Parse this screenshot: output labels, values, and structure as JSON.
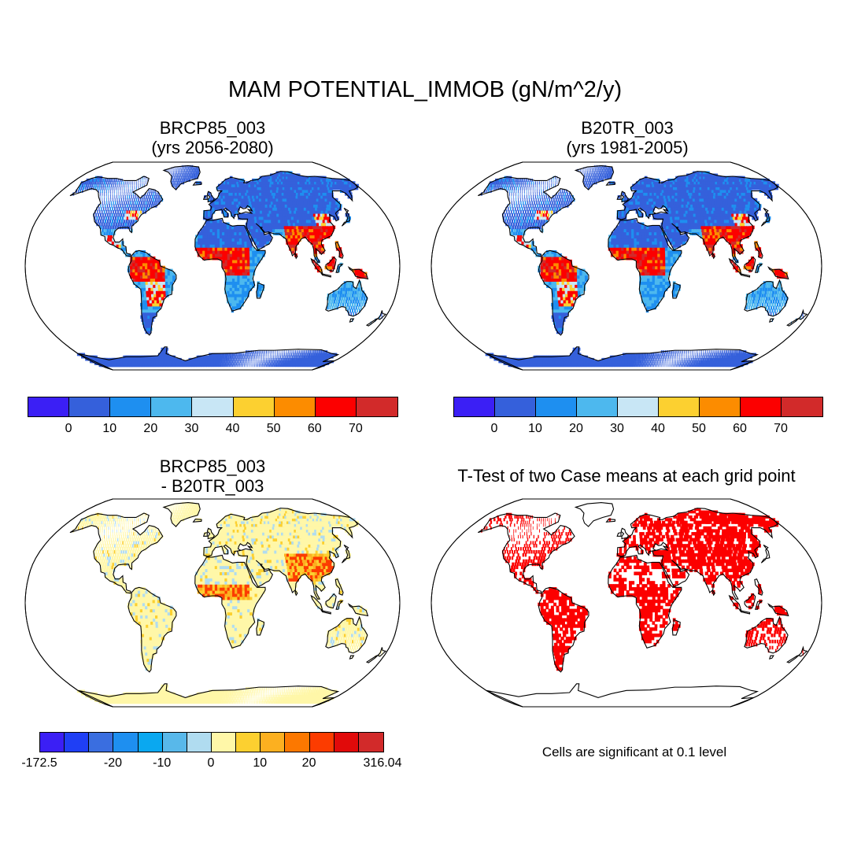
{
  "figure": {
    "title": "MAM POTENTIAL_IMMOB (gN/m^2/y)"
  },
  "panels": [
    {
      "id": "brcp85",
      "title": "BRCP85_003\n(yrs 2056-2080)",
      "colorbar": {
        "colors": [
          "#3b1ff5",
          "#3560db",
          "#1e8ff0",
          "#4db8ee",
          "#c8e6f5",
          "#fcd030",
          "#fc8c00",
          "#fc0000",
          "#d22a2a"
        ],
        "tick_labels": [
          "0",
          "10",
          "20",
          "30",
          "40",
          "50",
          "60",
          "70"
        ]
      }
    },
    {
      "id": "b20tr",
      "title": "B20TR_003\n(yrs 1981-2005)",
      "colorbar": {
        "colors": [
          "#3b1ff5",
          "#3560db",
          "#1e8ff0",
          "#4db8ee",
          "#c8e6f5",
          "#fcd030",
          "#fc8c00",
          "#fc0000",
          "#d22a2a"
        ],
        "tick_labels": [
          "0",
          "10",
          "20",
          "30",
          "40",
          "50",
          "60",
          "70"
        ]
      }
    },
    {
      "id": "diff",
      "title": "BRCP85_003\n- B20TR_003",
      "colorbar": {
        "colors": [
          "#3b1ff5",
          "#1f3ff5",
          "#3a6ee0",
          "#1e8ff0",
          "#0aa8f0",
          "#58b8ea",
          "#b0dcf0",
          "#fff7a8",
          "#fcd030",
          "#fcb020",
          "#fc7800",
          "#fc3c00",
          "#e10a0a",
          "#d22a2a"
        ],
        "tick_labels": [
          "-172.5",
          "-20",
          "-10",
          "0",
          "10",
          "20",
          "316.04"
        ]
      }
    },
    {
      "id": "ttest",
      "title": "T-Test of two Case means at each grid point",
      "note": "Cells are significant at 0.1 level"
    }
  ],
  "map_colors": {
    "ocean": "#ffffff",
    "land_base_abs": "#3560db",
    "land_base_diff": "#fff7a8",
    "significant": "#fc0000",
    "coast": "#000000"
  }
}
